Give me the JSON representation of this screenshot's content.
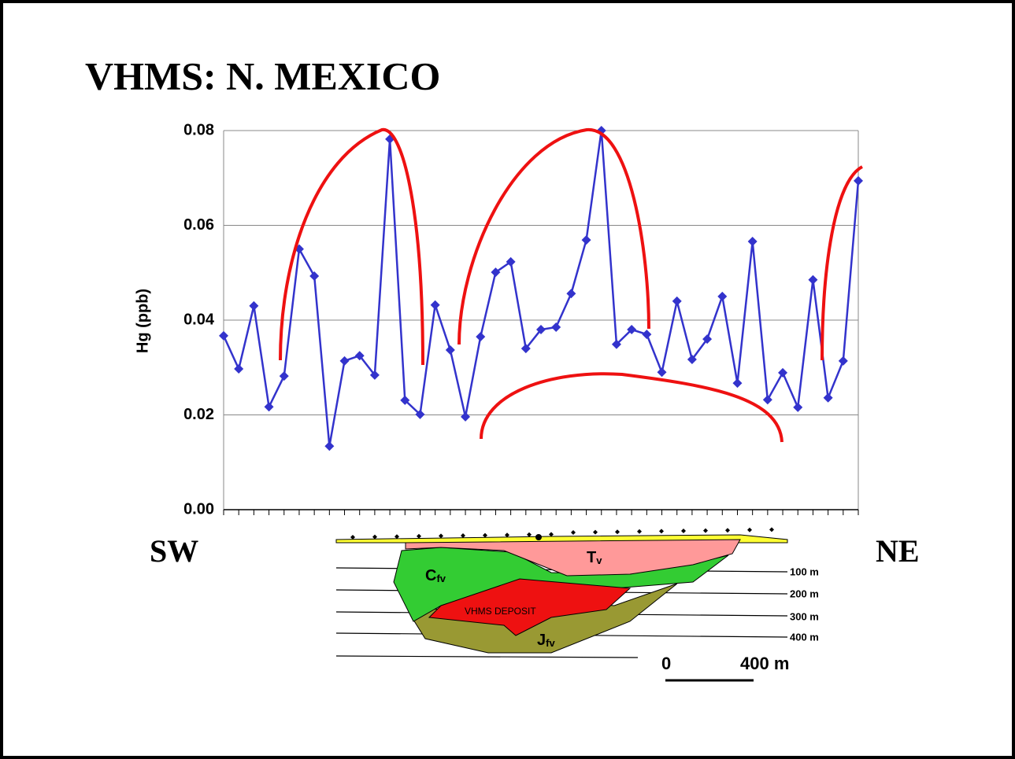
{
  "chart_data": {
    "type": "line",
    "title": "VHMS: N. MEXICO",
    "y_label": "Hg (ppb)",
    "categories": [
      null,
      null,
      null,
      null,
      null,
      null,
      null,
      null,
      null,
      null,
      null,
      null,
      null,
      null,
      null,
      null,
      null,
      null,
      null,
      null,
      null,
      null,
      null,
      null,
      null,
      null,
      null,
      null,
      null,
      null,
      null,
      null,
      null,
      null,
      null,
      null,
      null,
      null,
      null,
      null,
      null,
      null,
      null
    ],
    "series": [
      {
        "name": null,
        "color": "#3333cc",
        "values": [
          0.0367,
          0.0297,
          0.043,
          0.0217,
          0.0282,
          0.055,
          0.0493,
          0.0134,
          0.0314,
          0.0325,
          0.0284,
          0.0782,
          0.0231,
          0.0201,
          0.0432,
          0.0337,
          0.0196,
          0.0365,
          0.0501,
          0.0523,
          0.034,
          0.038,
          0.0385,
          0.0456,
          0.0569,
          0.08,
          0.0349,
          0.038,
          0.037,
          0.029,
          0.044,
          0.0317,
          0.036,
          0.045,
          0.0267,
          0.0566,
          0.0232,
          0.0289,
          0.0216,
          0.0485,
          0.0236,
          0.0314,
          0.0694
        ]
      }
    ],
    "ylim": [
      0,
      0.08
    ],
    "yticks": [
      {
        "value": 0,
        "label": "0.00"
      },
      {
        "value": 0.02,
        "label": "0.02"
      },
      {
        "value": 0.04,
        "label": "0.04"
      },
      {
        "value": 0.06,
        "label": "0.06"
      },
      {
        "value": 0.08,
        "label": "0.08"
      }
    ],
    "grid": true
  },
  "section": {
    "left": "SW",
    "right": "NE",
    "tv": {
      "main": "T",
      "sub": "v"
    },
    "cfv": {
      "main": "C",
      "sub": "fv"
    },
    "jfv": {
      "main": "J",
      "sub": "fv"
    },
    "deposit": "VHMS DEPOSIT",
    "depths": [
      "100 m",
      "200 m",
      "300 m",
      "400 m"
    ],
    "scale": {
      "start": "0",
      "end": "400 m"
    }
  }
}
